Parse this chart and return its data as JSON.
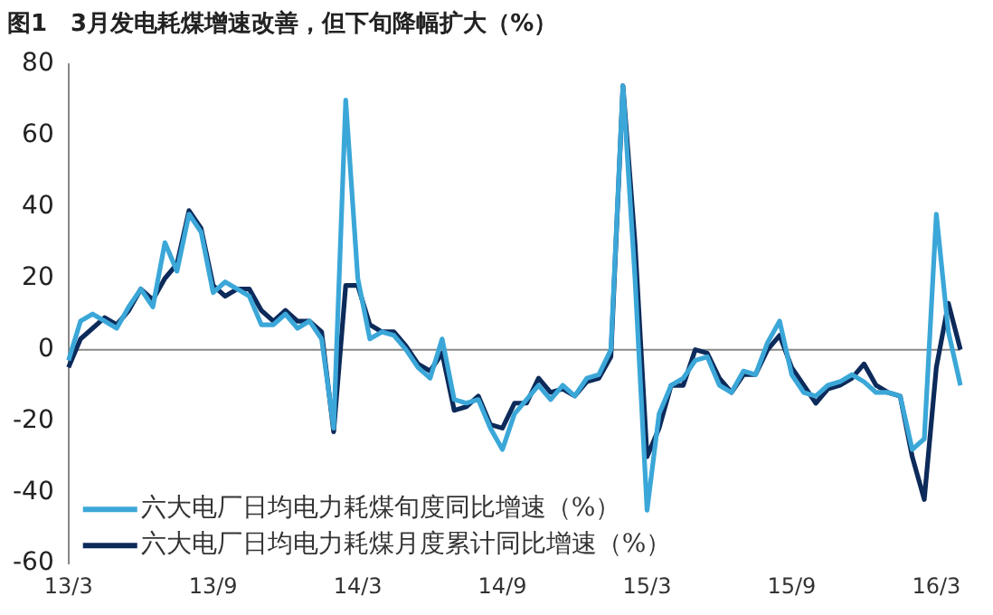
{
  "chart_data": {
    "type": "line",
    "title": "图1　3月发电耗煤增速改善，但下旬降幅扩大（%）",
    "categories": [
      "13/3",
      null,
      null,
      null,
      null,
      null,
      null,
      null,
      null,
      null,
      null,
      null,
      "13/9",
      null,
      null,
      null,
      null,
      null,
      null,
      null,
      null,
      null,
      null,
      null,
      "14/3",
      null,
      null,
      null,
      null,
      null,
      null,
      null,
      null,
      null,
      null,
      null,
      "14/9",
      null,
      null,
      null,
      null,
      null,
      null,
      null,
      null,
      null,
      null,
      null,
      "15/3",
      null,
      null,
      null,
      null,
      null,
      null,
      null,
      null,
      null,
      null,
      null,
      "15/9",
      null,
      null,
      null,
      null,
      null,
      null,
      null,
      null,
      null,
      null,
      null,
      "16/3",
      null,
      null
    ],
    "series": [
      {
        "name": "六大电厂日均电力耗煤旬度同比增速（%）",
        "color": "#3ba7d8",
        "values": [
          -3,
          8,
          10,
          8,
          6,
          12,
          17,
          12,
          30,
          22,
          38,
          33,
          16,
          19,
          17,
          15,
          7,
          7,
          10,
          6,
          8,
          3,
          -22,
          70,
          20,
          3,
          5,
          4,
          0,
          -5,
          -8,
          3,
          -14,
          -15,
          -14,
          -22,
          -28,
          -18,
          -14,
          -10,
          -14,
          -10,
          -13,
          -8,
          -7,
          0,
          74,
          20,
          -45,
          -18,
          -10,
          -8,
          -3,
          -2,
          -10,
          -12,
          -6,
          -7,
          2,
          8,
          -7,
          -12,
          -13,
          -10,
          -9,
          -7,
          -9,
          -12,
          -12,
          -13,
          -28,
          -25,
          38,
          5,
          -10
        ]
      },
      {
        "name": "六大电厂日均电力耗煤月度累计同比增速（%）",
        "color": "#0c2a5a",
        "values": [
          -5,
          3,
          6,
          9,
          7,
          11,
          17,
          14,
          20,
          24,
          39,
          34,
          18,
          15,
          17,
          17,
          11,
          8,
          11,
          8,
          8,
          5,
          -23,
          18,
          18,
          7,
          5,
          5,
          1,
          -4,
          -6,
          -1,
          -17,
          -16,
          -13,
          -21,
          -22,
          -15,
          -15,
          -8,
          -12,
          -11,
          -13,
          -9,
          -8,
          -2,
          74,
          30,
          -30,
          -22,
          -10,
          -10,
          0,
          -1,
          -8,
          -12,
          -7,
          -7,
          0,
          4,
          -5,
          -10,
          -15,
          -11,
          -10,
          -8,
          -4,
          -10,
          -12,
          -13,
          -30,
          -42,
          -5,
          13,
          0
        ]
      }
    ],
    "ylim": [
      -60,
      80
    ],
    "yticks": [
      -60,
      -40,
      -20,
      0,
      20,
      40,
      60,
      80
    ],
    "grid": false,
    "ref_lines": [
      {
        "axis": "y",
        "value": 0,
        "color": "#888888"
      }
    ],
    "legend": "bottom left",
    "marker": "none",
    "line_style": "solid"
  }
}
